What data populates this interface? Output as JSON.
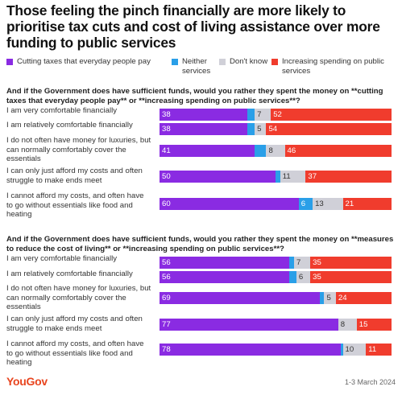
{
  "title": "Those feeling the pinch financially are more likely to prioritise tax cuts and cost of living assistance over more funding to public services",
  "colors": {
    "cutting_taxes": "#8a2be2",
    "neither": "#2a9fe8",
    "dont_know": "#d0d0d8",
    "increasing_spending": "#f03c2d"
  },
  "legend": [
    {
      "label": "Cutting taxes that everyday people pay",
      "color": "#8a2be2"
    },
    {
      "label": "Neither services",
      "color": "#2a9fe8"
    },
    {
      "label": "Don't know",
      "color": "#d0d0d8"
    },
    {
      "label": "Increasing spending on public services",
      "color": "#f03c2d"
    }
  ],
  "chart_data": [
    {
      "type": "bar",
      "stacked": true,
      "orientation": "horizontal",
      "question": "And if the Government does have sufficient funds, would you rather they spent the money on **cutting taxes that everyday people pay** or **increasing spending on public services**?",
      "categories": [
        "I am very comfortable financially",
        "I am relatively comfortable financially",
        "I do not often have money for luxuries, but can normally comfortably cover the essentials",
        "I can only just afford my costs and often struggle to make ends meet",
        "I cannot afford my costs, and often have to go without essentials like food and heating"
      ],
      "series": [
        {
          "name": "Cutting taxes that everyday people pay",
          "values": [
            38,
            38,
            41,
            50,
            60
          ]
        },
        {
          "name": "Neither",
          "values": [
            3,
            3,
            5,
            2,
            6
          ]
        },
        {
          "name": "Don't know",
          "values": [
            7,
            5,
            8,
            11,
            13
          ]
        },
        {
          "name": "Increasing spending on public services",
          "values": [
            52,
            54,
            46,
            37,
            21
          ]
        }
      ],
      "data_labels": [
        [
          "38",
          "",
          "7",
          "52"
        ],
        [
          "38",
          "",
          "5",
          "54"
        ],
        [
          "41",
          "",
          "8",
          "46"
        ],
        [
          "50",
          "",
          "11",
          "37"
        ],
        [
          "60",
          "6",
          "13",
          "21"
        ]
      ]
    },
    {
      "type": "bar",
      "stacked": true,
      "orientation": "horizontal",
      "question": "And if the Government does have sufficient funds, would you rather they spent the money on **measures to reduce the cost of living** or **increasing spending on public services**?",
      "categories": [
        "I am very comfortable financially",
        "I am relatively comfortable financially",
        "I do not often have money for luxuries, but can normally comfortably cover the essentials",
        "I can only just afford my costs and often struggle to make ends meet",
        "I cannot afford my costs, and often have to go without essentials like food and heating"
      ],
      "series": [
        {
          "name": "Cutting taxes that everyday people pay",
          "values": [
            56,
            56,
            69,
            77,
            78
          ]
        },
        {
          "name": "Neither",
          "values": [
            2,
            3,
            2,
            0,
            1
          ]
        },
        {
          "name": "Don't know",
          "values": [
            7,
            6,
            5,
            8,
            10
          ]
        },
        {
          "name": "Increasing spending on public services",
          "values": [
            35,
            35,
            24,
            15,
            11
          ]
        }
      ],
      "data_labels": [
        [
          "56",
          "",
          "7",
          "35"
        ],
        [
          "56",
          "",
          "6",
          "35"
        ],
        [
          "69",
          "",
          "5",
          "24"
        ],
        [
          "77",
          "",
          "8",
          "15"
        ],
        [
          "78",
          "",
          "10",
          "11"
        ]
      ]
    }
  ],
  "footer": {
    "logo": "YouGov",
    "date": "1-3 March 2024"
  }
}
